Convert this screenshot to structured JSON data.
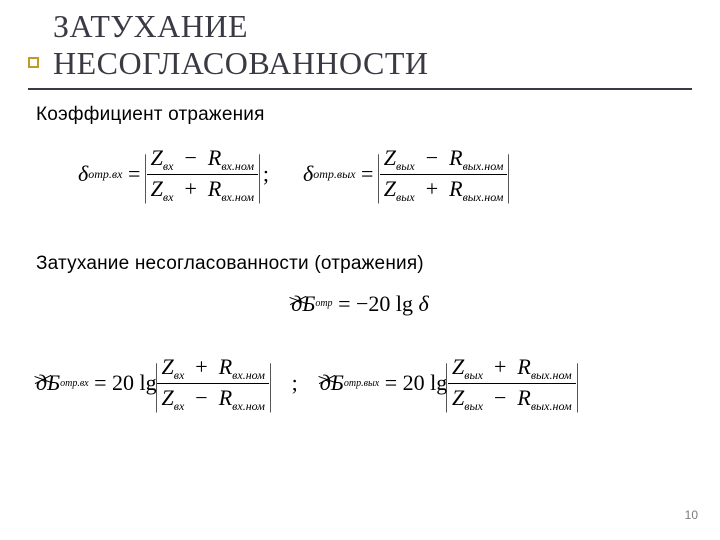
{
  "title_line1": "ЗАТУХАНИЕ",
  "title_line2": "НЕСОГЛАСОВАННОСТИ",
  "sub1": "Коэффициент отражения",
  "sub2": "Затухание несогласованности (отражения)",
  "page_number": "10",
  "colors": {
    "bullet_border": "#c49a24",
    "title_text": "#3a3a44",
    "underline": "#3a3a44",
    "body_text": "#000000"
  },
  "eq1a": {
    "lhs_sym": "δ",
    "lhs_sub": "отр.вх",
    "num_a": "Z",
    "num_a_sub": "вх",
    "num_op": "−",
    "num_b": "R",
    "num_b_sub": "вх.ном",
    "den_a": "Z",
    "den_a_sub": "вх",
    "den_op": "+",
    "den_b": "R",
    "den_b_sub": "вх.ном"
  },
  "eq1b": {
    "lhs_sym": "δ",
    "lhs_sub": "отр.вых",
    "num_a": "Z",
    "num_a_sub": "вых",
    "num_op": "−",
    "num_b": "R",
    "num_b_sub": "вых.ном",
    "den_a": "Z",
    "den_a_sub": "вых",
    "den_op": "+",
    "den_b": "R",
    "den_b_sub": "вых.ном"
  },
  "eq2": {
    "lhs_scratch": "дБ",
    "lhs_sub": "отр",
    "eq": "=",
    "rhs_num": "−20",
    "rhs_fn": "lg",
    "rhs_sym": "δ"
  },
  "eq3a": {
    "lhs_scratch": "дБ",
    "lhs_sub": "отр.вх",
    "coef": "20",
    "fn": "lg",
    "num_a": "Z",
    "num_a_sub": "вх",
    "num_op": "+",
    "num_b": "R",
    "num_b_sub": "вх.ном",
    "den_a": "Z",
    "den_a_sub": "вх",
    "den_op": "−",
    "den_b": "R",
    "den_b_sub": "вх.ном"
  },
  "eq3b": {
    "lhs_scratch": "дБ",
    "lhs_sub": "отр.вых",
    "coef": "20",
    "fn": "lg",
    "num_a": "Z",
    "num_a_sub": "вых",
    "num_op": "+",
    "num_b": "R",
    "num_b_sub": "вых.ном",
    "den_a": "Z",
    "den_a_sub": "вых",
    "den_op": "−",
    "den_b": "R",
    "den_b_sub": "вых.ном"
  }
}
